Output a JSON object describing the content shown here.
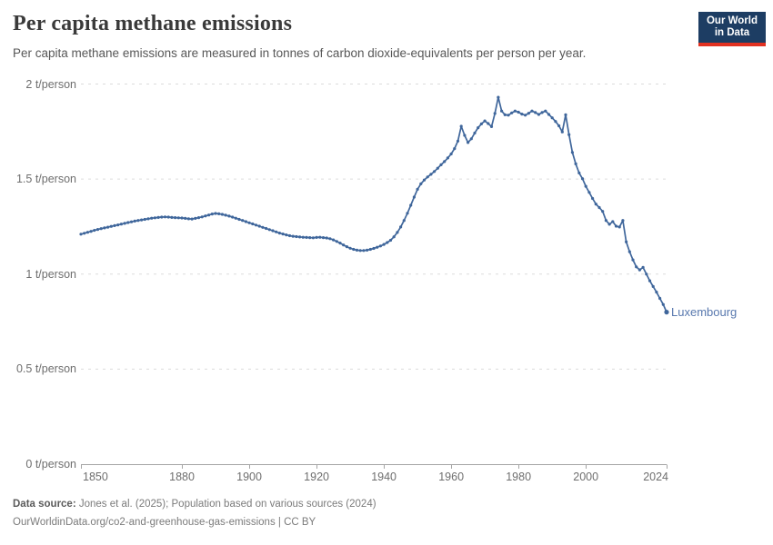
{
  "logo": {
    "line1": "Our World",
    "line2": "in Data"
  },
  "footer": {
    "source_label": "Data source:",
    "source_text": "Jones et al. (2025); Population based on various sources (2024)",
    "link_line": "OurWorldinData.org/co2-and-greenhouse-gas-emissions | CC BY"
  },
  "colors": {
    "line": "#3f669b",
    "entity_label": "#5878ae",
    "grid": "#dcdcdc",
    "axis": "#a5a5a5",
    "tick_text": "#6e6e6e"
  },
  "chart_data": {
    "type": "line",
    "title": "Per capita methane emissions",
    "subtitle": "Per capita methane emissions are measured in tonnes of carbon dioxide-equivalents per person per year.",
    "unit": "t/person",
    "x_range": [
      1850,
      2024
    ],
    "ylim": [
      0,
      2
    ],
    "grid": "dashed-horizontal",
    "legend_position": "end-of-line-label",
    "x_ticks": [
      1850,
      1880,
      1900,
      1920,
      1940,
      1960,
      1980,
      2000,
      2024
    ],
    "y_ticks": [
      {
        "value": 0,
        "label": "0 t/person"
      },
      {
        "value": 0.5,
        "label": "0.5 t/person"
      },
      {
        "value": 1,
        "label": "1 t/person"
      },
      {
        "value": 1.5,
        "label": "1.5 t/person"
      },
      {
        "value": 2,
        "label": "2 t/person"
      }
    ],
    "series": [
      {
        "name": "Luxembourg",
        "start_year": 1850,
        "values": [
          1.21,
          1.215,
          1.22,
          1.225,
          1.23,
          1.235,
          1.239,
          1.243,
          1.247,
          1.251,
          1.255,
          1.259,
          1.263,
          1.267,
          1.271,
          1.275,
          1.279,
          1.282,
          1.285,
          1.288,
          1.291,
          1.294,
          1.296,
          1.298,
          1.3,
          1.301,
          1.3,
          1.298,
          1.297,
          1.296,
          1.295,
          1.293,
          1.291,
          1.29,
          1.293,
          1.297,
          1.301,
          1.306,
          1.311,
          1.316,
          1.319,
          1.317,
          1.314,
          1.31,
          1.305,
          1.3,
          1.294,
          1.288,
          1.282,
          1.276,
          1.27,
          1.264,
          1.258,
          1.252,
          1.246,
          1.24,
          1.234,
          1.228,
          1.222,
          1.216,
          1.211,
          1.206,
          1.202,
          1.199,
          1.197,
          1.195,
          1.194,
          1.193,
          1.192,
          1.191,
          1.193,
          1.194,
          1.192,
          1.19,
          1.186,
          1.18,
          1.172,
          1.163,
          1.153,
          1.144,
          1.136,
          1.13,
          1.126,
          1.124,
          1.124,
          1.126,
          1.13,
          1.135,
          1.141,
          1.148,
          1.156,
          1.166,
          1.178,
          1.196,
          1.219,
          1.248,
          1.282,
          1.32,
          1.362,
          1.405,
          1.446,
          1.475,
          1.495,
          1.511,
          1.525,
          1.54,
          1.557,
          1.575,
          1.592,
          1.611,
          1.632,
          1.66,
          1.7,
          1.778,
          1.73,
          1.692,
          1.712,
          1.742,
          1.77,
          1.79,
          1.806,
          1.792,
          1.776,
          1.845,
          1.93,
          1.858,
          1.838,
          1.836,
          1.848,
          1.858,
          1.852,
          1.842,
          1.836,
          1.846,
          1.858,
          1.85,
          1.84,
          1.85,
          1.858,
          1.84,
          1.822,
          1.803,
          1.78,
          1.748,
          1.838,
          1.734,
          1.64,
          1.58,
          1.532,
          1.502,
          1.462,
          1.43,
          1.398,
          1.368,
          1.35,
          1.33,
          1.282,
          1.262,
          1.276,
          1.252,
          1.248,
          1.282,
          1.17,
          1.118,
          1.075,
          1.038,
          1.022,
          1.035,
          1.0,
          0.965,
          0.935,
          0.905,
          0.872,
          0.84,
          0.8
        ]
      }
    ]
  }
}
